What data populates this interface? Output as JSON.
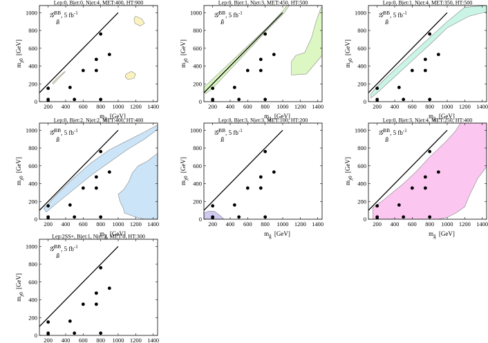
{
  "figure": {
    "x_ticks": [
      200,
      400,
      600,
      800,
      1000,
      1200,
      1400
    ],
    "y_ticks": [
      0,
      200,
      400,
      600,
      800,
      1000
    ],
    "xlim": [
      100,
      1450
    ],
    "ylim": [
      0,
      1080
    ],
    "diagonal_line": [
      [
        100,
        100
      ],
      [
        1000,
        1000
      ]
    ],
    "benchmark_points": [
      [
        200,
        150
      ],
      [
        200,
        25
      ],
      [
        200,
        0
      ],
      [
        450,
        160
      ],
      [
        500,
        25
      ],
      [
        600,
        350
      ],
      [
        750,
        475
      ],
      [
        750,
        350
      ],
      [
        800,
        760
      ],
      [
        800,
        25
      ],
      [
        900,
        530
      ]
    ]
  },
  "chart_data": [
    {
      "type": "area",
      "title": "Lep:0, Bjet:0, Njet:4, MET:400, HT:900",
      "xlabel": "m",
      "xlabel_sub": "g̃",
      "xlabel_unit": "[GeV]",
      "ylabel": "m",
      "ylabel_sub": "χ0",
      "ylabel_unit": "[GeV]",
      "legend_symbol": "𝒢",
      "legend_sup": "BB",
      "legend_sub": "B̃",
      "legend_lumi": ", 5 fb",
      "legend_lumi_sup": "-1",
      "region_color": "#fbf3bd",
      "regions": [
        [
          [
            1200,
            960
          ],
          [
            1270,
            930
          ],
          [
            1300,
            880
          ],
          [
            1250,
            850
          ],
          [
            1190,
            880
          ],
          [
            1180,
            930
          ]
        ],
        [
          [
            1090,
            310
          ],
          [
            1150,
            340
          ],
          [
            1200,
            310
          ],
          [
            1180,
            260
          ],
          [
            1110,
            250
          ],
          [
            1080,
            280
          ]
        ],
        [
          [
            250,
            210
          ],
          [
            300,
            260
          ],
          [
            380,
            330
          ],
          [
            395,
            340
          ],
          [
            380,
            320
          ],
          [
            300,
            240
          ],
          [
            260,
            200
          ]
        ]
      ]
    },
    {
      "type": "area",
      "title": "Lep:0, Bjet:1, Njet:3, MET:450, HT:500",
      "xlabel": "m",
      "xlabel_sub": "g̃",
      "xlabel_unit": "[GeV]",
      "ylabel": "m",
      "ylabel_sub": "χ0",
      "ylabel_unit": "[GeV]",
      "legend_symbol": "𝒢",
      "legend_sup": "BB",
      "legend_sub": "B̃",
      "legend_lumi": ", 5 fb",
      "legend_lumi_sup": "-1",
      "region_color": "#dcf7c2",
      "regions": [
        [
          [
            100,
            110
          ],
          [
            100,
            160
          ],
          [
            850,
            860
          ],
          [
            1010,
            1030
          ],
          [
            1050,
            1080
          ],
          [
            1075,
            1080
          ],
          [
            1010,
            990
          ],
          [
            800,
            780
          ],
          [
            400,
            360
          ],
          [
            200,
            150
          ],
          [
            120,
            90
          ]
        ],
        [
          [
            1410,
            980
          ],
          [
            1440,
            1060
          ],
          [
            1450,
            1060
          ],
          [
            1450,
            520
          ],
          [
            1270,
            310
          ],
          [
            1100,
            300
          ],
          [
            1100,
            450
          ],
          [
            1150,
            520
          ],
          [
            1250,
            550
          ],
          [
            1330,
            720
          ],
          [
            1380,
            900
          ]
        ]
      ]
    },
    {
      "type": "area",
      "title": "Lep:0, Bjet:1, Njet:4, MET:350, HT:500",
      "xlabel": "m",
      "xlabel_sub": "g̃",
      "xlabel_unit": "[GeV]",
      "ylabel": "m",
      "ylabel_sub": "χ0",
      "ylabel_unit": "[GeV]",
      "legend_symbol": "𝒢",
      "legend_sup": "BB",
      "legend_sub": "B̃",
      "legend_lumi": ", 5 fb",
      "legend_lumi_sup": "-1",
      "region_color": "#c9f4e6",
      "regions": [
        [
          [
            130,
            90
          ],
          [
            200,
            170
          ],
          [
            400,
            360
          ],
          [
            600,
            540
          ],
          [
            800,
            720
          ],
          [
            1000,
            900
          ],
          [
            1200,
            1060
          ],
          [
            1450,
            1080
          ],
          [
            1450,
            1010
          ],
          [
            1250,
            960
          ],
          [
            1000,
            830
          ],
          [
            800,
            640
          ],
          [
            600,
            460
          ],
          [
            400,
            280
          ],
          [
            200,
            100
          ],
          [
            130,
            40
          ]
        ]
      ]
    },
    {
      "type": "area",
      "title": "Lep:0, Bjet:2, Njet:2, MET:400, HT:400",
      "xlabel": "m",
      "xlabel_sub": "g̃",
      "xlabel_unit": "[GeV]",
      "ylabel": "m",
      "ylabel_sub": "χ0",
      "ylabel_unit": "[GeV]",
      "legend_symbol": "𝒢",
      "legend_sup": "BB",
      "legend_sub": "B̃",
      "legend_lumi": ", 5 fb",
      "legend_lumi_sup": "-1",
      "region_color": "#cbe4f7",
      "regions": [
        [
          [
            150,
            120
          ],
          [
            300,
            280
          ],
          [
            500,
            470
          ],
          [
            700,
            640
          ],
          [
            900,
            780
          ],
          [
            1100,
            880
          ],
          [
            1300,
            980
          ],
          [
            1450,
            1060
          ],
          [
            1450,
            1010
          ],
          [
            1300,
            900
          ],
          [
            1100,
            780
          ],
          [
            900,
            640
          ],
          [
            700,
            500
          ],
          [
            500,
            340
          ],
          [
            300,
            180
          ],
          [
            180,
            80
          ]
        ],
        [
          [
            1450,
            0
          ],
          [
            1450,
            740
          ],
          [
            1330,
            650
          ],
          [
            1230,
            600
          ],
          [
            1160,
            520
          ],
          [
            1120,
            420
          ],
          [
            1060,
            330
          ],
          [
            1000,
            280
          ],
          [
            1020,
            200
          ],
          [
            1060,
            120
          ],
          [
            1070,
            70
          ],
          [
            1180,
            30
          ],
          [
            1300,
            0
          ]
        ]
      ]
    },
    {
      "type": "area",
      "title": "Lep:0, Bjet:3, Njet:3, MET:100, HT:200",
      "xlabel": "m",
      "xlabel_sub": "g̃",
      "xlabel_unit": "[GeV]",
      "ylabel": "m",
      "ylabel_sub": "χ0",
      "ylabel_unit": "[GeV]",
      "legend_symbol": "𝒢",
      "legend_sup": "BB",
      "legend_sub": "B̃",
      "legend_lumi": ", 5 fb",
      "legend_lumi_sup": "-1",
      "region_color": "#cec9ee",
      "regions": [
        [
          [
            100,
            0
          ],
          [
            100,
            70
          ],
          [
            150,
            90
          ],
          [
            220,
            90
          ],
          [
            300,
            30
          ],
          [
            330,
            0
          ]
        ]
      ]
    },
    {
      "type": "area",
      "title": "Lep:0, Bjet:3, Njet:4, MET:250, HT:400",
      "xlabel": "m",
      "xlabel_sub": "g̃",
      "xlabel_unit": "[GeV]",
      "ylabel": "m",
      "ylabel_sub": "χ0",
      "ylabel_unit": "[GeV]",
      "legend_symbol": "𝒢",
      "legend_sup": "BB",
      "legend_sub": "B̃",
      "legend_lumi": ", 5 fb",
      "legend_lumi_sup": "-1",
      "region_color": "#fbc6f0",
      "regions": [
        [
          [
            150,
            0
          ],
          [
            150,
            130
          ],
          [
            250,
            200
          ],
          [
            350,
            280
          ],
          [
            500,
            400
          ],
          [
            650,
            540
          ],
          [
            800,
            700
          ],
          [
            950,
            840
          ],
          [
            1050,
            940
          ],
          [
            1100,
            1000
          ],
          [
            1150,
            1080
          ],
          [
            1450,
            1080
          ],
          [
            1450,
            590
          ],
          [
            1350,
            460
          ],
          [
            1300,
            360
          ],
          [
            1250,
            260
          ],
          [
            1200,
            140
          ],
          [
            1100,
            70
          ],
          [
            1000,
            20
          ],
          [
            900,
            0
          ]
        ]
      ]
    },
    {
      "type": "area",
      "title": "Lep:2SS+, Bjet:1, Njet:3, MET:0, HT:300",
      "xlabel": "m",
      "xlabel_sub": "g̃",
      "xlabel_unit": "[GeV]",
      "ylabel": "m",
      "ylabel_sub": "χ0",
      "ylabel_unit": "[GeV]",
      "legend_symbol": "𝒢",
      "legend_sup": "BB",
      "legend_sub": "B̃",
      "legend_lumi": ", 5 fb",
      "legend_lumi_sup": "-1",
      "region_color": "#ffffff",
      "regions": []
    }
  ]
}
